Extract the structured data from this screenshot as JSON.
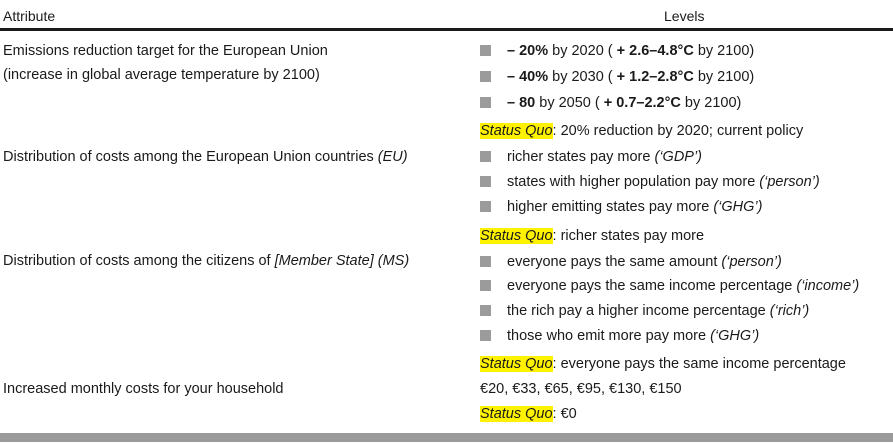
{
  "header": {
    "attribute": "Attribute",
    "levels": "Levels"
  },
  "attributes": [
    {
      "lines": [
        "Emissions reduction target for the European Union",
        "(increase in global average temperature by 2100)"
      ],
      "levels": [
        [
          "– 20%",
          " by 2020 ( ",
          "+ 2.6–4.8°C",
          " by 2100)"
        ],
        [
          "– 40%",
          " by 2030 ( ",
          "+ 1.2–2.8°C",
          " by 2100)"
        ],
        [
          "– 80",
          " by 2050 ( ",
          "+ 0.7–2.2°C",
          " by 2100)"
        ]
      ],
      "status_quo": ": 20% reduction by 2020; current policy"
    },
    {
      "prefix": "Distribution of costs among the European Union countries ",
      "tag": "(EU)",
      "levels": [
        [
          "richer states pay more ",
          "(‘GDP’)"
        ],
        [
          "states with higher population pay more ",
          "(‘person’)"
        ],
        [
          "higher emitting states pay more ",
          "(‘GHG’)"
        ]
      ],
      "status_quo": ": richer states pay more"
    },
    {
      "prefix": "Distribution of costs among the citizens of ",
      "tag": "[Member State] (MS)",
      "levels": [
        [
          "everyone pays the same amount ",
          "(‘person’)"
        ],
        [
          "everyone pays the same income percentage ",
          "(‘income’)"
        ],
        [
          "the rich pay a higher income percentage ",
          "(‘rich’)"
        ],
        [
          "those who emit more pay more ",
          "(‘GHG’)"
        ]
      ],
      "status_quo": ": everyone pays the same income percentage"
    },
    {
      "label": "Increased monthly costs for your household",
      "values_text": "€20, €33, €65, €95, €130, €150",
      "status_quo": ": €0"
    }
  ],
  "status_quo_label": "Status Quo"
}
